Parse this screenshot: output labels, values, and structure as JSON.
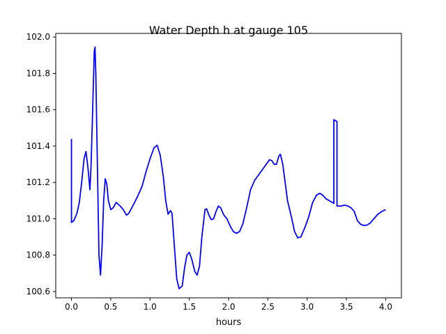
{
  "chart_data": {
    "type": "line",
    "title": "Water Depth h at gauge 105",
    "xlabel": "hours",
    "ylabel": "",
    "xlim": [
      -0.2,
      4.2
    ],
    "ylim": [
      100.565,
      102.02
    ],
    "xticks": [
      0.0,
      0.5,
      1.0,
      1.5,
      2.0,
      2.5,
      3.0,
      3.5,
      4.0
    ],
    "xtick_labels": [
      "0.0",
      "0.5",
      "1.0",
      "1.5",
      "2.0",
      "2.5",
      "3.0",
      "3.5",
      "4.0"
    ],
    "yticks": [
      100.6,
      100.8,
      101.0,
      101.2,
      101.4,
      101.6,
      101.8,
      102.0
    ],
    "ytick_labels": [
      "100.6",
      "100.8",
      "101.0",
      "101.2",
      "101.4",
      "101.6",
      "101.8",
      "102.0"
    ],
    "grid": false,
    "series": [
      {
        "color": "#0000ff",
        "points": [
          [
            0.0,
            101.44
          ],
          [
            0.0,
            100.98
          ],
          [
            0.03,
            100.99
          ],
          [
            0.07,
            101.03
          ],
          [
            0.1,
            101.09
          ],
          [
            0.13,
            101.2
          ],
          [
            0.16,
            101.33
          ],
          [
            0.185,
            101.37
          ],
          [
            0.21,
            101.28
          ],
          [
            0.235,
            101.16
          ],
          [
            0.25,
            101.3
          ],
          [
            0.27,
            101.6
          ],
          [
            0.29,
            101.92
          ],
          [
            0.3,
            101.945
          ],
          [
            0.31,
            101.8
          ],
          [
            0.33,
            101.3
          ],
          [
            0.35,
            100.8
          ],
          [
            0.37,
            100.69
          ],
          [
            0.39,
            100.85
          ],
          [
            0.41,
            101.1
          ],
          [
            0.43,
            101.22
          ],
          [
            0.45,
            101.19
          ],
          [
            0.47,
            101.1
          ],
          [
            0.5,
            101.05
          ],
          [
            0.53,
            101.06
          ],
          [
            0.57,
            101.09
          ],
          [
            0.62,
            101.07
          ],
          [
            0.66,
            101.05
          ],
          [
            0.7,
            101.02
          ],
          [
            0.73,
            101.03
          ],
          [
            0.78,
            101.07
          ],
          [
            0.85,
            101.13
          ],
          [
            0.9,
            101.18
          ],
          [
            0.95,
            101.26
          ],
          [
            1.0,
            101.33
          ],
          [
            1.05,
            101.39
          ],
          [
            1.09,
            101.405
          ],
          [
            1.13,
            101.35
          ],
          [
            1.17,
            101.23
          ],
          [
            1.2,
            101.1
          ],
          [
            1.23,
            101.025
          ],
          [
            1.26,
            101.045
          ],
          [
            1.28,
            101.03
          ],
          [
            1.31,
            100.85
          ],
          [
            1.34,
            100.67
          ],
          [
            1.37,
            100.615
          ],
          [
            1.41,
            100.63
          ],
          [
            1.44,
            100.73
          ],
          [
            1.47,
            100.8
          ],
          [
            1.5,
            100.815
          ],
          [
            1.53,
            100.78
          ],
          [
            1.57,
            100.71
          ],
          [
            1.6,
            100.69
          ],
          [
            1.63,
            100.74
          ],
          [
            1.66,
            100.9
          ],
          [
            1.7,
            101.05
          ],
          [
            1.72,
            101.055
          ],
          [
            1.75,
            101.02
          ],
          [
            1.78,
            100.995
          ],
          [
            1.81,
            101.0
          ],
          [
            1.84,
            101.04
          ],
          [
            1.87,
            101.07
          ],
          [
            1.9,
            101.06
          ],
          [
            1.94,
            101.02
          ],
          [
            1.98,
            101.0
          ],
          [
            2.02,
            100.96
          ],
          [
            2.06,
            100.93
          ],
          [
            2.1,
            100.92
          ],
          [
            2.14,
            100.93
          ],
          [
            2.18,
            100.97
          ],
          [
            2.23,
            101.06
          ],
          [
            2.28,
            101.16
          ],
          [
            2.33,
            101.21
          ],
          [
            2.38,
            101.24
          ],
          [
            2.43,
            101.27
          ],
          [
            2.48,
            101.3
          ],
          [
            2.52,
            101.325
          ],
          [
            2.55,
            101.32
          ],
          [
            2.58,
            101.3
          ],
          [
            2.61,
            101.3
          ],
          [
            2.64,
            101.345
          ],
          [
            2.66,
            101.355
          ],
          [
            2.69,
            101.3
          ],
          [
            2.72,
            101.2
          ],
          [
            2.75,
            101.1
          ],
          [
            2.8,
            101.01
          ],
          [
            2.84,
            100.93
          ],
          [
            2.88,
            100.895
          ],
          [
            2.92,
            100.9
          ],
          [
            2.97,
            100.95
          ],
          [
            3.02,
            101.01
          ],
          [
            3.07,
            101.09
          ],
          [
            3.12,
            101.13
          ],
          [
            3.16,
            101.14
          ],
          [
            3.2,
            101.13
          ],
          [
            3.24,
            101.11
          ],
          [
            3.28,
            101.1
          ],
          [
            3.32,
            101.09
          ],
          [
            3.34,
            101.085
          ],
          [
            3.34,
            101.545
          ],
          [
            3.38,
            101.535
          ],
          [
            3.38,
            101.07
          ],
          [
            3.43,
            101.07
          ],
          [
            3.48,
            101.075
          ],
          [
            3.52,
            101.07
          ],
          [
            3.56,
            101.06
          ],
          [
            3.6,
            101.04
          ],
          [
            3.64,
            100.99
          ],
          [
            3.68,
            100.97
          ],
          [
            3.72,
            100.963
          ],
          [
            3.76,
            100.965
          ],
          [
            3.8,
            100.975
          ],
          [
            3.85,
            101.0
          ],
          [
            3.9,
            101.025
          ],
          [
            3.95,
            101.04
          ],
          [
            4.0,
            101.05
          ]
        ]
      }
    ]
  }
}
